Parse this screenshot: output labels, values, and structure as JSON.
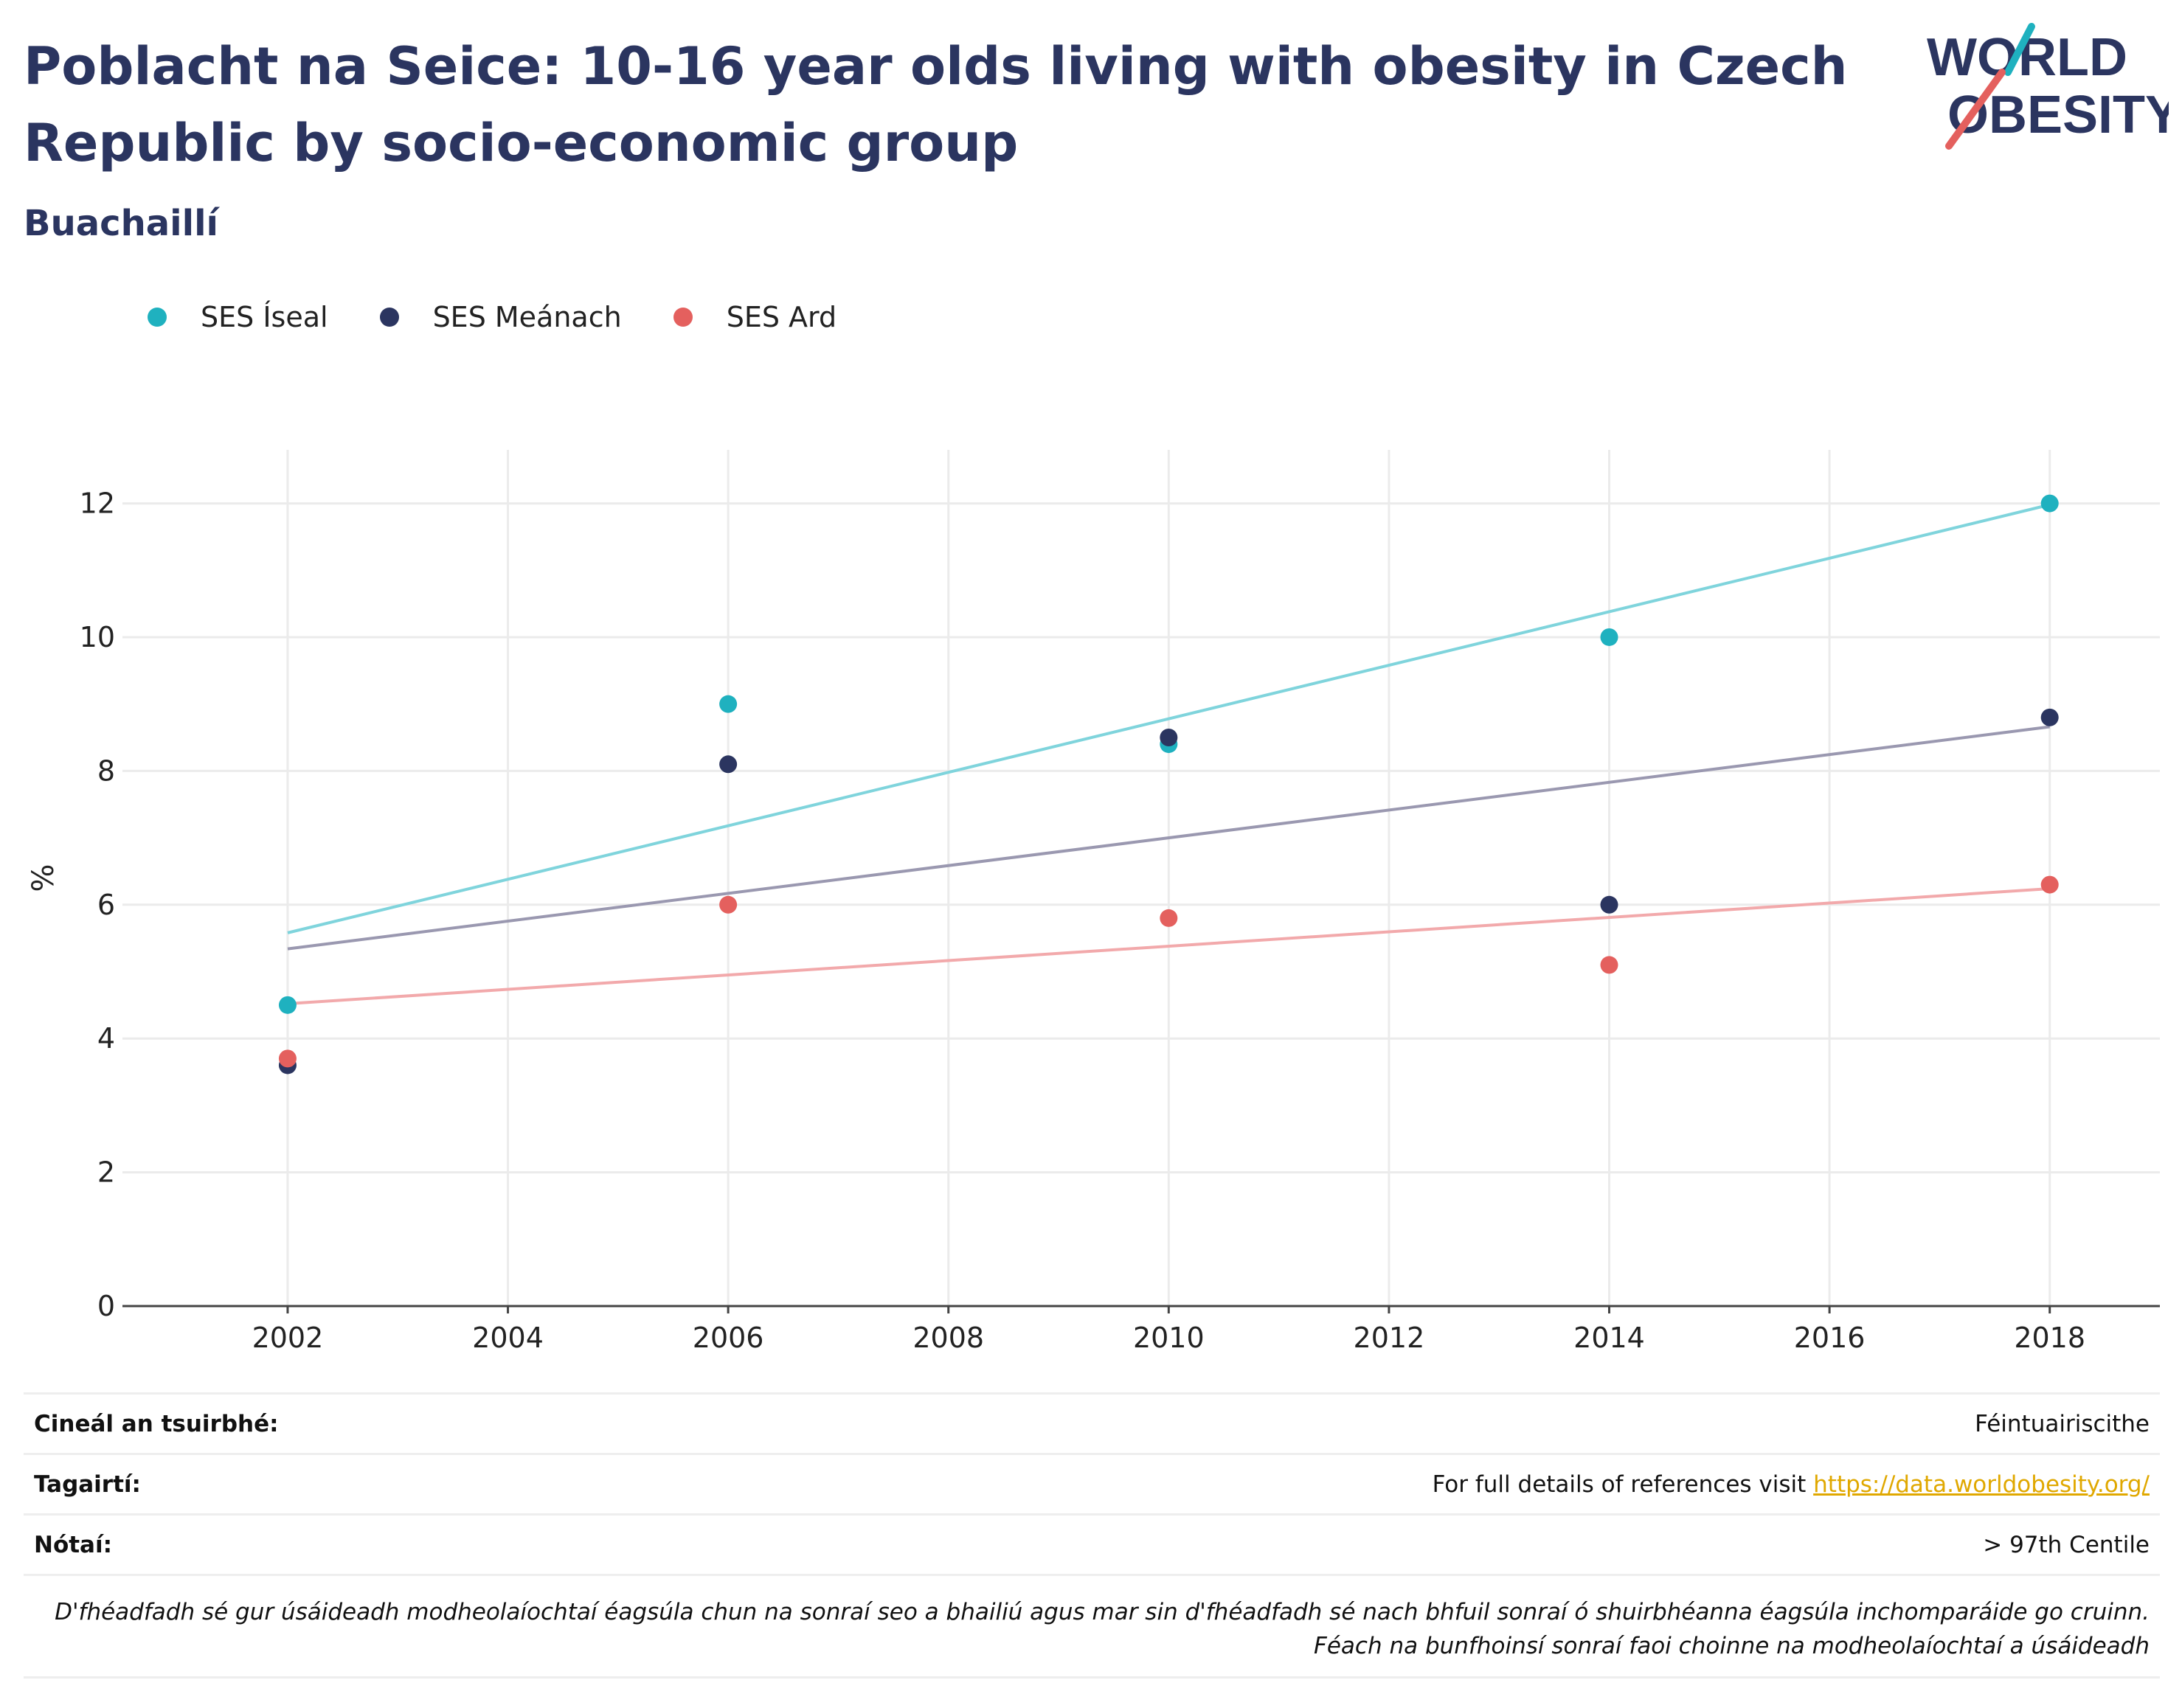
{
  "header": {
    "title": "Poblacht na Seice: 10-16 year olds living with obesity in Czech Republic by socio-economic group",
    "subtitle": "Buachaillí"
  },
  "logo": {
    "line1": "WORLD",
    "line2": "OBESITY",
    "text_color": "#2b3560",
    "slash_colors": [
      "#1fb1bf",
      "#e4605e"
    ]
  },
  "legend": {
    "items": [
      {
        "label": "SES Íseal",
        "color": "#1fb1bf"
      },
      {
        "label": "SES Meánach",
        "color": "#2b3560"
      },
      {
        "label": "SES Ard",
        "color": "#e4605e"
      }
    ]
  },
  "chart_data": {
    "type": "scatter",
    "title": "Poblacht na Seice: 10-16 year olds living with obesity in Czech Republic by socio-economic group",
    "subtitle": "Buachaillí",
    "xlabel": "",
    "ylabel": "%",
    "xlim": [
      2000.5,
      2019
    ],
    "ylim": [
      0,
      12.8
    ],
    "x_ticks": [
      2002,
      2004,
      2006,
      2008,
      2010,
      2012,
      2014,
      2016,
      2018
    ],
    "y_ticks": [
      0,
      2,
      4,
      6,
      8,
      10,
      12
    ],
    "grid": true,
    "legend_position": "top-left",
    "series": [
      {
        "name": "SES Íseal",
        "color": "#1fb1bf",
        "trend_color": "#7fd4dc",
        "points": [
          [
            2002,
            4.5
          ],
          [
            2006,
            9.0
          ],
          [
            2010,
            8.4
          ],
          [
            2014,
            10.0
          ],
          [
            2018,
            12.0
          ]
        ],
        "trend": [
          [
            2002,
            5.58
          ],
          [
            2018,
            11.98
          ]
        ]
      },
      {
        "name": "SES Meánach",
        "color": "#2b3560",
        "trend_color": "#9a98b0",
        "points": [
          [
            2002,
            3.6
          ],
          [
            2006,
            8.1
          ],
          [
            2010,
            8.5
          ],
          [
            2014,
            6.0
          ],
          [
            2018,
            8.8
          ]
        ],
        "trend": [
          [
            2002,
            5.34
          ],
          [
            2018,
            8.66
          ]
        ]
      },
      {
        "name": "SES Ard",
        "color": "#e4605e",
        "trend_color": "#f2a9ab",
        "points": [
          [
            2002,
            3.7
          ],
          [
            2006,
            6.0
          ],
          [
            2010,
            5.8
          ],
          [
            2014,
            5.1
          ],
          [
            2018,
            6.3
          ]
        ],
        "trend": [
          [
            2002,
            4.52
          ],
          [
            2018,
            6.24
          ]
        ]
      }
    ]
  },
  "info": {
    "survey_label": "Cineál an tsuirbhé:",
    "survey_value": "Féintuairiscithe",
    "references_label": "Tagairtí:",
    "references_text": "For full details of references visit",
    "references_link": "https://data.worldobesity.org/",
    "notes_label": "Nótaí:",
    "notes_value": "> 97th Centile",
    "disclaimer_line1": "D'fhéadfadh sé gur úsáideadh modheolaíochtaí éagsúla chun na sonraí seo a bhailiú agus mar sin d'fhéadfadh sé nach bhfuil sonraí ó shuirbhéanna éagsúla inchomparáide go cruinn.",
    "disclaimer_line2": "Féach na bunfhoinsí sonraí faoi choinne na modheolaíochtaí a úsáideadh"
  }
}
